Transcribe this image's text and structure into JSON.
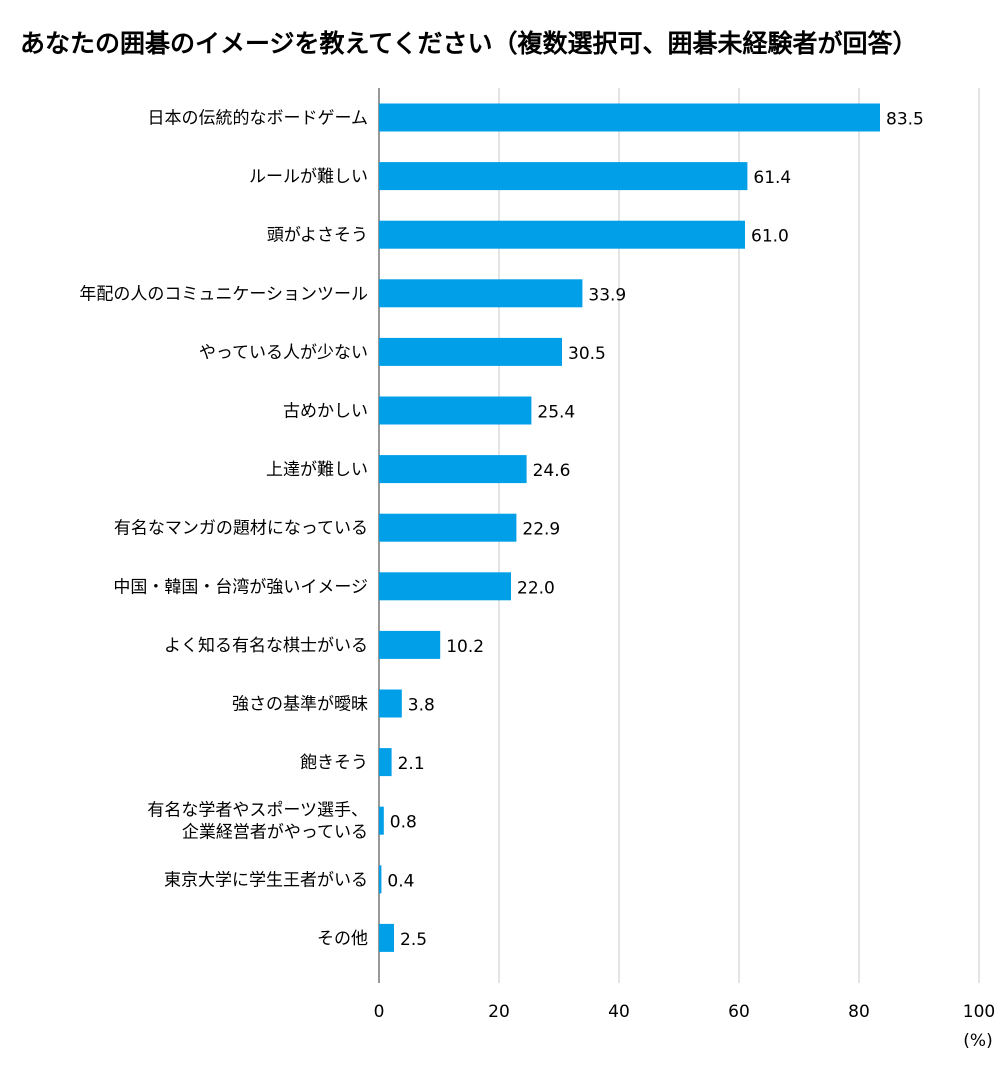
{
  "chart_data": {
    "type": "bar",
    "orientation": "horizontal",
    "title": "あなたの囲碁のイメージを教えてください（複数選択可、囲碁未経験者が回答）",
    "categories": [
      [
        "日本の伝統的なボードゲーム"
      ],
      [
        "ルールが難しい"
      ],
      [
        "頭がよさそう"
      ],
      [
        "年配の人のコミュニケーションツール"
      ],
      [
        "やっている人が少ない"
      ],
      [
        "古めかしい"
      ],
      [
        "上達が難しい"
      ],
      [
        "有名なマンガの題材になっている"
      ],
      [
        "中国・韓国・台湾が強いイメージ"
      ],
      [
        "よく知る有名な棋士がいる"
      ],
      [
        "強さの基準が曖昧"
      ],
      [
        "飽きそう"
      ],
      [
        "有名な学者やスポーツ選手、",
        "企業経営者がやっている"
      ],
      [
        "東京大学に学生王者がいる"
      ],
      [
        "その他"
      ]
    ],
    "values": [
      83.5,
      61.4,
      61.0,
      33.9,
      30.5,
      25.4,
      24.6,
      22.9,
      22.0,
      10.2,
      3.8,
      2.1,
      0.8,
      0.4,
      2.5
    ],
    "value_labels": [
      "83.5",
      "61.4",
      "61.0",
      "33.9",
      "30.5",
      "25.4",
      "24.6",
      "22.9",
      "22.0",
      "10.2",
      "3.8",
      "2.1",
      "0.8",
      "0.4",
      "2.5"
    ],
    "xlim": [
      0,
      100
    ],
    "xticks": [
      0,
      20,
      40,
      60,
      80,
      100
    ],
    "xtick_labels": [
      "0",
      "20",
      "40",
      "60",
      "80",
      "100"
    ],
    "unit": "(%)",
    "grid": "vertical",
    "bar_color": "#009fe8",
    "grid_color": "#c8c8c8"
  }
}
